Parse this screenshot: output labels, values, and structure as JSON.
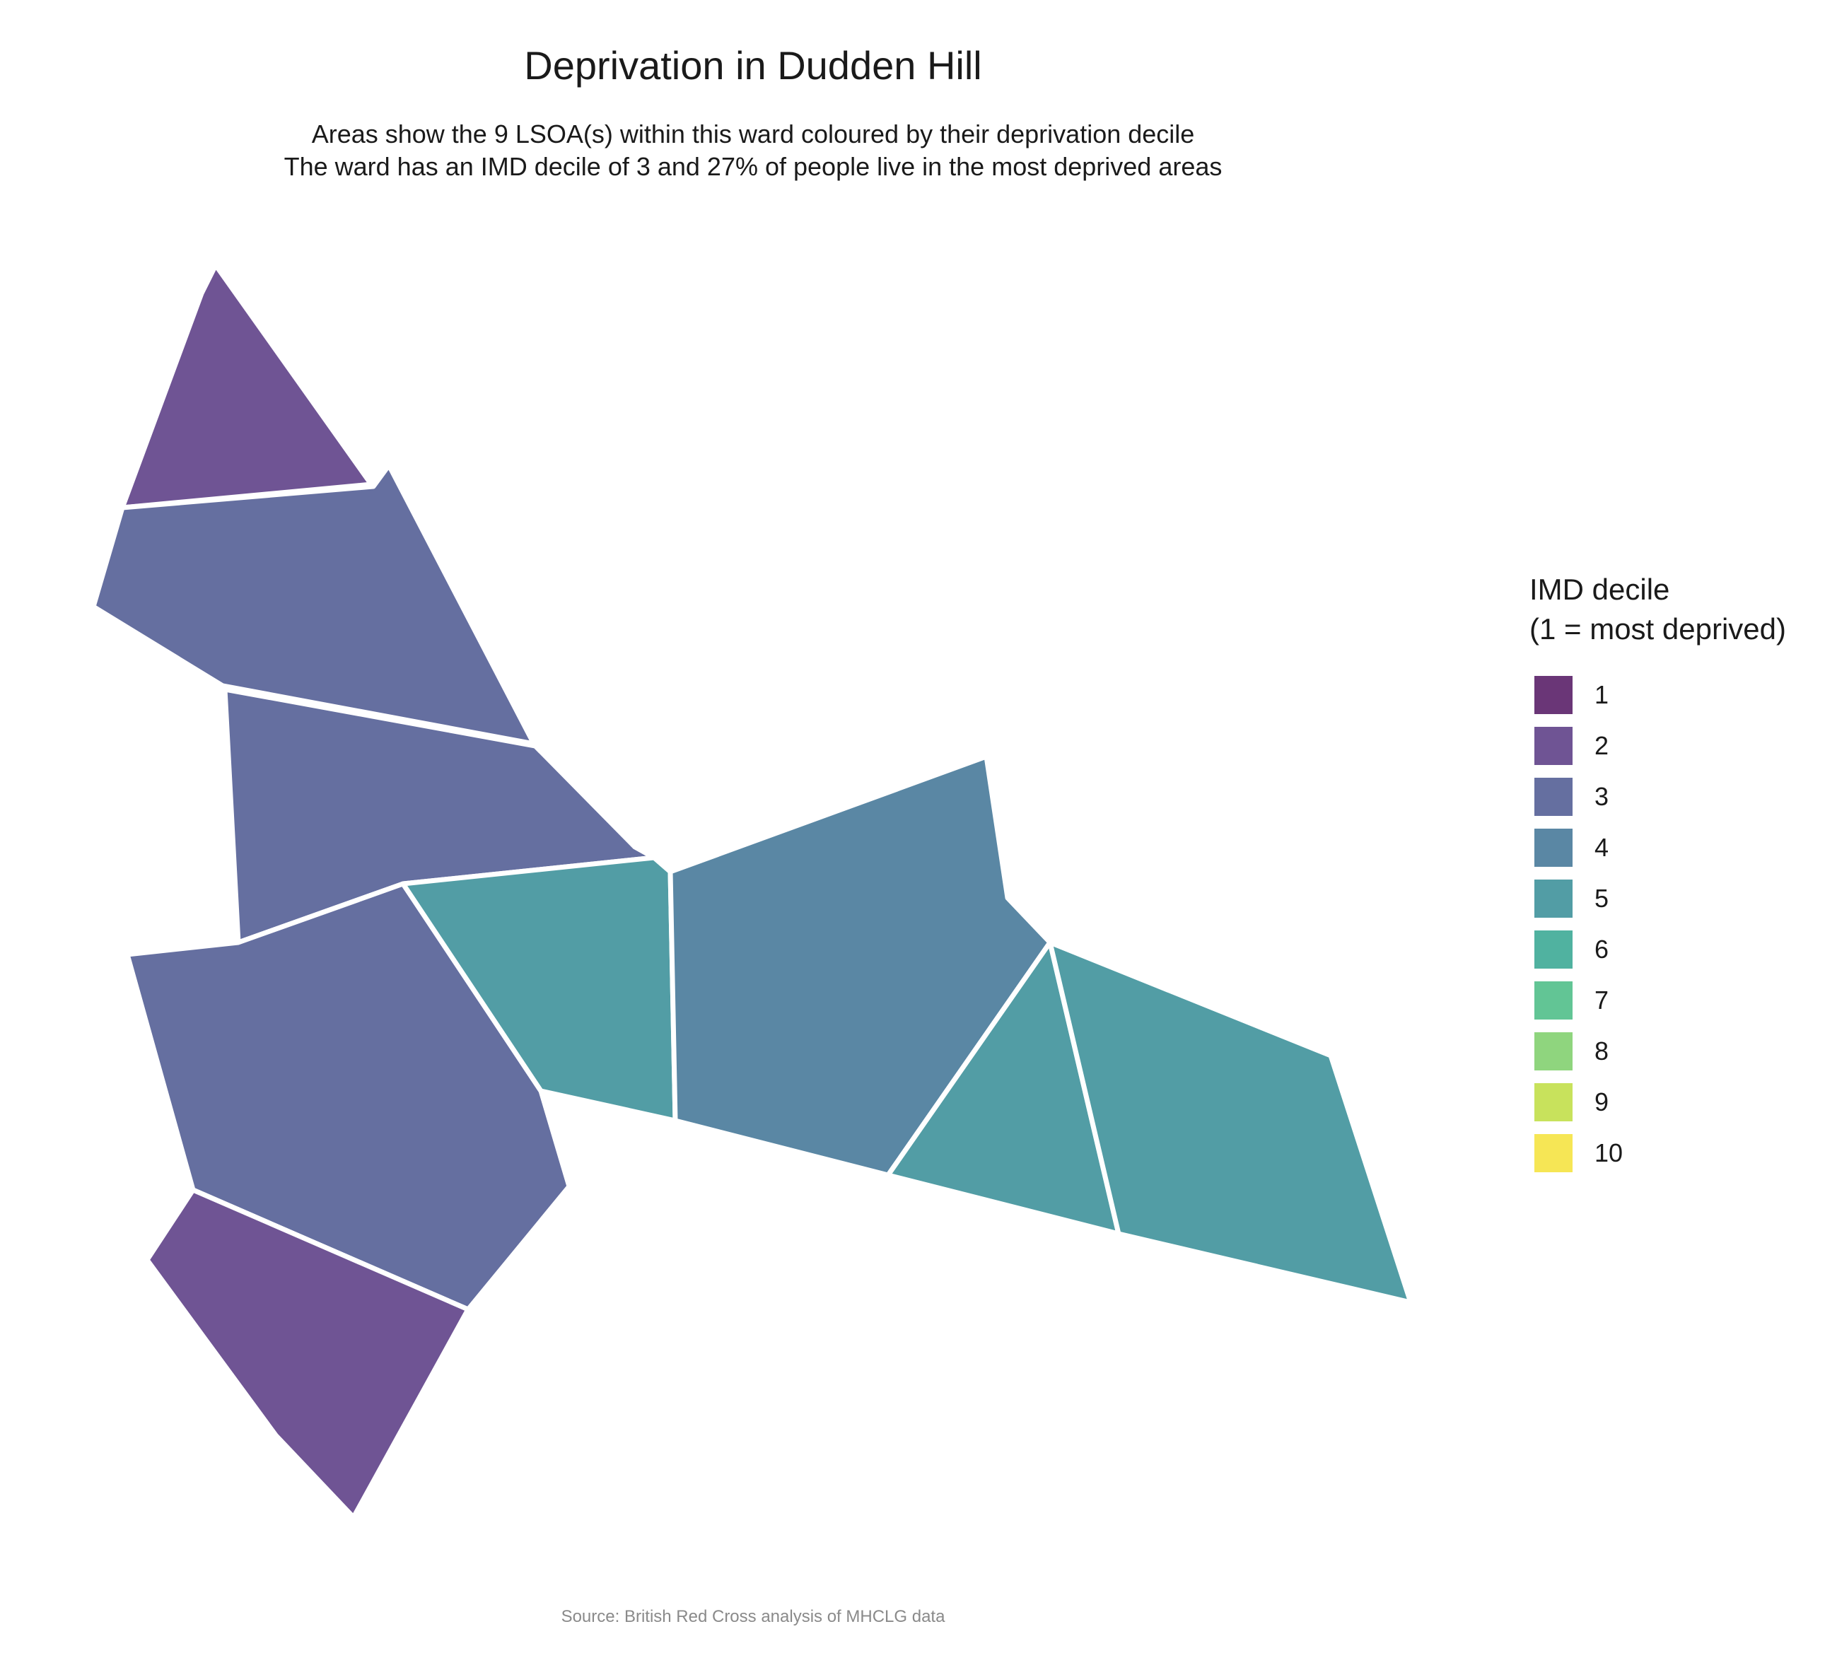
{
  "title": "Deprivation in Dudden Hill",
  "subtitle": {
    "line1": "Areas show the 9 LSOA(s) within this ward coloured by their deprivation decile",
    "line2": "The ward has an IMD decile of 3 and 27% of people live in the most deprived areas"
  },
  "legend": {
    "title_line1": "IMD decile",
    "title_line2": "(1 = most deprived)",
    "items": [
      {
        "label": "1",
        "color": "#6a3677"
      },
      {
        "label": "2",
        "color": "#6f5494"
      },
      {
        "label": "3",
        "color": "#656fa0"
      },
      {
        "label": "4",
        "color": "#5a87a4"
      },
      {
        "label": "5",
        "color": "#529da5"
      },
      {
        "label": "6",
        "color": "#50b2a0"
      },
      {
        "label": "7",
        "color": "#62c595"
      },
      {
        "label": "8",
        "color": "#8fd57e"
      },
      {
        "label": "9",
        "color": "#c8e25c"
      },
      {
        "label": "10",
        "color": "#f6e655"
      }
    ]
  },
  "map": {
    "areas": [
      {
        "name": "lsoa-north-tip",
        "decile": 2
      },
      {
        "name": "lsoa-north-upper",
        "decile": 3
      },
      {
        "name": "lsoa-north-middle",
        "decile": 3
      },
      {
        "name": "lsoa-west-central",
        "decile": 3
      },
      {
        "name": "lsoa-south-tip",
        "decile": 2
      },
      {
        "name": "lsoa-central-small",
        "decile": 5
      },
      {
        "name": "lsoa-central-east",
        "decile": 4
      },
      {
        "name": "lsoa-east-small",
        "decile": 5
      },
      {
        "name": "lsoa-east-tip",
        "decile": 5
      }
    ]
  },
  "caption": "Source: British Red Cross analysis of MHCLG data"
}
